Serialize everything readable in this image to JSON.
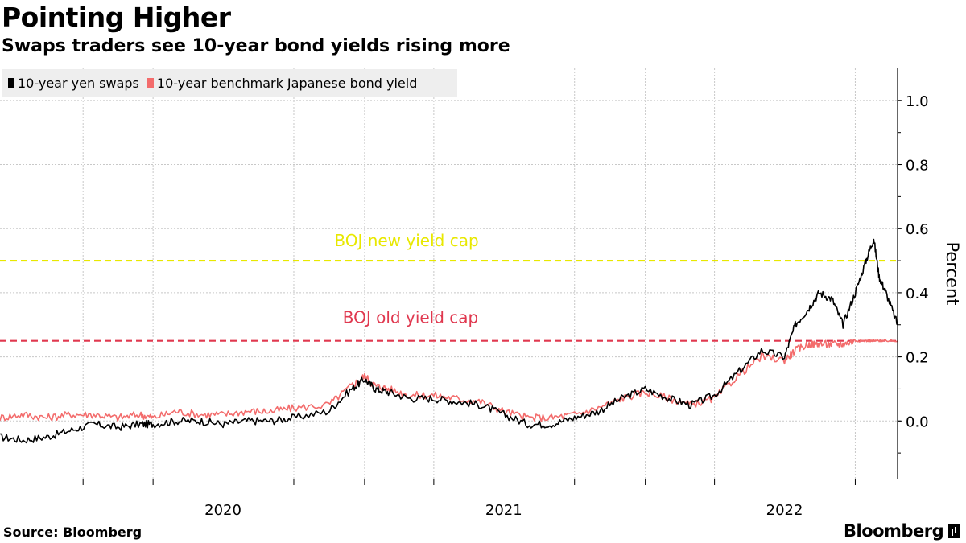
{
  "header": {
    "title": "Pointing Higher",
    "subtitle": "Swaps traders see 10-year bond yields rising more"
  },
  "footer": {
    "source": "Source: Bloomberg",
    "brand": "Bloomberg"
  },
  "chart_data": {
    "type": "line",
    "title": "Pointing Higher",
    "subtitle": "Swaps traders see 10-year bond yields rising more",
    "xlabel": "",
    "ylabel": "Percent",
    "ylim": [
      -0.18,
      1.1
    ],
    "yticks": [
      0.0,
      0.2,
      0.4,
      0.6,
      0.8,
      1.0
    ],
    "ytick_labels": [
      "0.0",
      "0.2",
      "0.4",
      "0.6",
      "0.8",
      "1.0"
    ],
    "xlim": [
      "2019-09-15",
      "2022-11-25"
    ],
    "xtick_labels": [
      {
        "label": "2020",
        "date": "2020-07-01"
      },
      {
        "label": "2021",
        "date": "2021-07-01"
      },
      {
        "label": "2022",
        "date": "2022-07-01"
      }
    ],
    "minor_gridlines": [
      "2020-01-01",
      "2020-04-01",
      "2020-10-01",
      "2021-01-01",
      "2021-04-01",
      "2021-10-01",
      "2022-01-01",
      "2022-04-01",
      "2022-10-01"
    ],
    "grid": true,
    "legend": "top-left",
    "reference_lines": [
      {
        "label": "BOJ new yield cap",
        "value": 0.5,
        "color": "#e8e800"
      },
      {
        "label": "BOJ old yield cap",
        "value": 0.25,
        "color": "#e0384f"
      }
    ],
    "series": [
      {
        "name": "10-year yen swaps",
        "color": "#000000",
        "points": [
          [
            "2019-09-15",
            -0.05
          ],
          [
            "2019-10-15",
            -0.06
          ],
          [
            "2019-11-15",
            -0.05
          ],
          [
            "2019-12-15",
            -0.03
          ],
          [
            "2020-01-15",
            -0.01
          ],
          [
            "2020-02-15",
            -0.02
          ],
          [
            "2020-03-15",
            -0.01
          ],
          [
            "2020-04-01",
            -0.01
          ],
          [
            "2020-05-01",
            0.0
          ],
          [
            "2020-06-01",
            0.0
          ],
          [
            "2020-07-01",
            -0.01
          ],
          [
            "2020-08-01",
            0.0
          ],
          [
            "2020-09-01",
            0.0
          ],
          [
            "2020-10-01",
            0.01
          ],
          [
            "2020-11-15",
            0.03
          ],
          [
            "2020-12-15",
            0.1
          ],
          [
            "2021-01-01",
            0.13
          ],
          [
            "2021-01-15",
            0.1
          ],
          [
            "2021-02-01",
            0.09
          ],
          [
            "2021-03-01",
            0.07
          ],
          [
            "2021-04-01",
            0.07
          ],
          [
            "2021-05-01",
            0.06
          ],
          [
            "2021-06-01",
            0.05
          ],
          [
            "2021-07-01",
            0.02
          ],
          [
            "2021-08-01",
            -0.01
          ],
          [
            "2021-09-01",
            -0.01
          ],
          [
            "2021-10-01",
            0.01
          ],
          [
            "2021-11-01",
            0.03
          ],
          [
            "2021-12-01",
            0.07
          ],
          [
            "2022-01-01",
            0.1
          ],
          [
            "2022-02-01",
            0.07
          ],
          [
            "2022-03-01",
            0.05
          ],
          [
            "2022-04-01",
            0.08
          ],
          [
            "2022-05-01",
            0.15
          ],
          [
            "2022-06-01",
            0.22
          ],
          [
            "2022-07-01",
            0.2
          ],
          [
            "2022-07-15",
            0.3
          ],
          [
            "2022-08-01",
            0.35
          ],
          [
            "2022-08-15",
            0.4
          ],
          [
            "2022-09-01",
            0.38
          ],
          [
            "2022-09-15",
            0.3
          ],
          [
            "2022-10-01",
            0.4
          ],
          [
            "2022-10-15",
            0.5
          ],
          [
            "2022-10-25",
            0.57
          ],
          [
            "2022-11-01",
            0.45
          ],
          [
            "2022-11-10",
            0.4
          ],
          [
            "2022-11-25",
            0.3
          ]
        ]
      },
      {
        "name": "10-year benchmark Japanese bond yield",
        "color": "#f36c6c",
        "points": [
          [
            "2019-09-15",
            0.01
          ],
          [
            "2019-10-15",
            0.02
          ],
          [
            "2019-11-15",
            0.01
          ],
          [
            "2019-12-15",
            0.02
          ],
          [
            "2020-01-15",
            0.02
          ],
          [
            "2020-02-15",
            0.01
          ],
          [
            "2020-03-15",
            0.02
          ],
          [
            "2020-04-01",
            0.01
          ],
          [
            "2020-05-01",
            0.03
          ],
          [
            "2020-06-01",
            0.02
          ],
          [
            "2020-07-01",
            0.02
          ],
          [
            "2020-08-01",
            0.03
          ],
          [
            "2020-09-01",
            0.03
          ],
          [
            "2020-10-01",
            0.04
          ],
          [
            "2020-11-15",
            0.05
          ],
          [
            "2020-12-15",
            0.11
          ],
          [
            "2021-01-01",
            0.14
          ],
          [
            "2021-01-15",
            0.11
          ],
          [
            "2021-02-01",
            0.1
          ],
          [
            "2021-03-01",
            0.08
          ],
          [
            "2021-04-01",
            0.08
          ],
          [
            "2021-05-01",
            0.07
          ],
          [
            "2021-06-01",
            0.06
          ],
          [
            "2021-07-01",
            0.03
          ],
          [
            "2021-08-01",
            0.01
          ],
          [
            "2021-09-01",
            0.01
          ],
          [
            "2021-10-01",
            0.02
          ],
          [
            "2021-11-01",
            0.04
          ],
          [
            "2021-12-01",
            0.07
          ],
          [
            "2022-01-01",
            0.09
          ],
          [
            "2022-02-01",
            0.07
          ],
          [
            "2022-03-01",
            0.05
          ],
          [
            "2022-04-01",
            0.07
          ],
          [
            "2022-05-01",
            0.14
          ],
          [
            "2022-06-01",
            0.2
          ],
          [
            "2022-07-01",
            0.19
          ],
          [
            "2022-07-15",
            0.22
          ],
          [
            "2022-08-01",
            0.24
          ],
          [
            "2022-08-15",
            0.24
          ],
          [
            "2022-09-01",
            0.24
          ],
          [
            "2022-09-15",
            0.24
          ],
          [
            "2022-10-01",
            0.25
          ],
          [
            "2022-10-15",
            0.25
          ],
          [
            "2022-10-25",
            0.25
          ],
          [
            "2022-11-01",
            0.25
          ],
          [
            "2022-11-10",
            0.25
          ],
          [
            "2022-11-25",
            0.25
          ]
        ]
      }
    ]
  }
}
